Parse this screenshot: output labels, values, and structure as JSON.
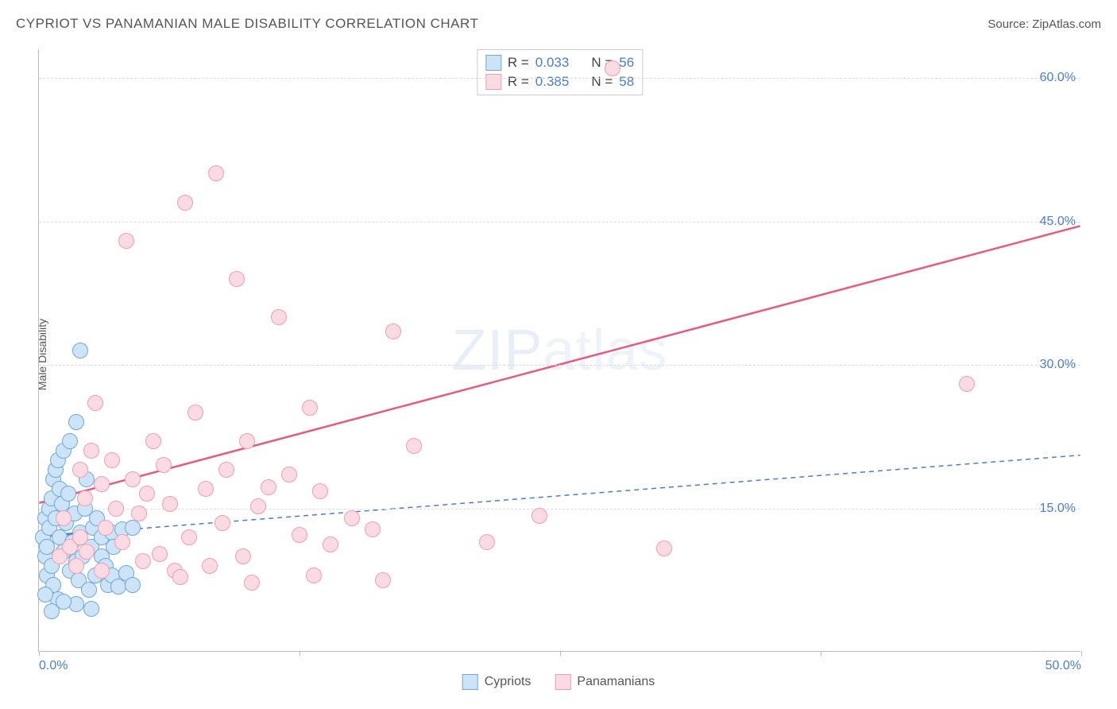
{
  "title": "CYPRIOT VS PANAMANIAN MALE DISABILITY CORRELATION CHART",
  "source_prefix": "Source: ",
  "source_name": "ZipAtlas.com",
  "y_label": "Male Disability",
  "watermark_bold": "ZIP",
  "watermark_light": "atlas",
  "chart": {
    "type": "scatter",
    "xlim": [
      0,
      50
    ],
    "ylim": [
      0,
      63
    ],
    "x_ticks": [
      0,
      12.5,
      25,
      37.5,
      50
    ],
    "x_tick_labels": {
      "0": "0.0%",
      "50": "50.0%"
    },
    "y_ticks": [
      15,
      30,
      45,
      60
    ],
    "y_tick_labels": {
      "15": "15.0%",
      "30": "30.0%",
      "45": "45.0%",
      "60": "60.0%"
    },
    "background_color": "#ffffff",
    "grid_color": "#dddddd",
    "axis_color": "#bbbbbb",
    "marker_radius": 10,
    "marker_stroke_width": 1.5,
    "series": [
      {
        "name": "Cypriots",
        "fill": "#cde3f7",
        "stroke": "#6fa8dc",
        "r_value": "0.033",
        "n_value": "56",
        "trend": {
          "x1": 0,
          "y1": 12.0,
          "x2": 50,
          "y2": 20.5,
          "color": "#4a7ec9",
          "dash": "6,5",
          "width": 1.5,
          "solid_until_x": 3.5
        },
        "points": [
          [
            0.2,
            12
          ],
          [
            0.3,
            10
          ],
          [
            0.3,
            14
          ],
          [
            0.4,
            8
          ],
          [
            0.4,
            11
          ],
          [
            0.5,
            13
          ],
          [
            0.5,
            15
          ],
          [
            0.6,
            9
          ],
          [
            0.6,
            16
          ],
          [
            0.7,
            18
          ],
          [
            0.7,
            7
          ],
          [
            0.8,
            14
          ],
          [
            0.8,
            19
          ],
          [
            0.9,
            20
          ],
          [
            0.9,
            5.5
          ],
          [
            1.0,
            17
          ],
          [
            1.0,
            12
          ],
          [
            1.1,
            15.5
          ],
          [
            1.2,
            21
          ],
          [
            1.2,
            10.5
          ],
          [
            1.3,
            13.5
          ],
          [
            1.4,
            16.5
          ],
          [
            1.5,
            22
          ],
          [
            1.5,
            8.5
          ],
          [
            1.6,
            11.5
          ],
          [
            1.7,
            14.5
          ],
          [
            1.8,
            9.5
          ],
          [
            1.8,
            24
          ],
          [
            1.9,
            7.5
          ],
          [
            2.0,
            31.5
          ],
          [
            2.0,
            12.5
          ],
          [
            2.1,
            10
          ],
          [
            2.2,
            15
          ],
          [
            2.3,
            18
          ],
          [
            2.4,
            6.5
          ],
          [
            2.5,
            11
          ],
          [
            2.6,
            13
          ],
          [
            2.7,
            8
          ],
          [
            2.8,
            14
          ],
          [
            3.0,
            10
          ],
          [
            3.0,
            12
          ],
          [
            3.2,
            9
          ],
          [
            3.3,
            7
          ],
          [
            3.5,
            12.5
          ],
          [
            3.5,
            8
          ],
          [
            3.6,
            11
          ],
          [
            3.8,
            6.8
          ],
          [
            4.0,
            12.8
          ],
          [
            4.2,
            8.2
          ],
          [
            4.5,
            7
          ],
          [
            4.5,
            13
          ],
          [
            2.5,
            4.5
          ],
          [
            1.8,
            5
          ],
          [
            0.6,
            4.2
          ],
          [
            0.3,
            6
          ],
          [
            1.2,
            5.2
          ]
        ]
      },
      {
        "name": "Panamanians",
        "fill": "#fbdbe3",
        "stroke": "#f29cb1",
        "r_value": "0.385",
        "n_value": "58",
        "trend": {
          "x1": 0,
          "y1": 15.5,
          "x2": 50,
          "y2": 44.5,
          "color": "#e85a7d",
          "dash": null,
          "width": 2.5
        },
        "points": [
          [
            1.0,
            10
          ],
          [
            1.2,
            14
          ],
          [
            1.5,
            11
          ],
          [
            1.8,
            9
          ],
          [
            2.0,
            19
          ],
          [
            2.2,
            16
          ],
          [
            2.3,
            10.5
          ],
          [
            2.5,
            21
          ],
          [
            2.7,
            26
          ],
          [
            3.0,
            17.5
          ],
          [
            3.2,
            13
          ],
          [
            3.5,
            20
          ],
          [
            3.7,
            15
          ],
          [
            4.0,
            11.5
          ],
          [
            4.2,
            43
          ],
          [
            4.5,
            18
          ],
          [
            4.8,
            14.5
          ],
          [
            5.0,
            9.5
          ],
          [
            5.2,
            16.5
          ],
          [
            5.5,
            22
          ],
          [
            5.8,
            10.2
          ],
          [
            6.0,
            19.5
          ],
          [
            6.3,
            15.5
          ],
          [
            6.5,
            8.5
          ],
          [
            6.8,
            7.8
          ],
          [
            7.0,
            47
          ],
          [
            7.2,
            12
          ],
          [
            7.5,
            25
          ],
          [
            8.0,
            17
          ],
          [
            8.2,
            9
          ],
          [
            8.5,
            50
          ],
          [
            8.8,
            13.5
          ],
          [
            9.0,
            19
          ],
          [
            9.5,
            39
          ],
          [
            9.8,
            10
          ],
          [
            10.0,
            22
          ],
          [
            10.2,
            7.2
          ],
          [
            10.5,
            15.2
          ],
          [
            11.0,
            17.2
          ],
          [
            11.5,
            35
          ],
          [
            12.0,
            18.5
          ],
          [
            12.5,
            12.2
          ],
          [
            13.0,
            25.5
          ],
          [
            13.2,
            8
          ],
          [
            13.5,
            16.8
          ],
          [
            14.0,
            11.2
          ],
          [
            15.0,
            14
          ],
          [
            16.0,
            12.8
          ],
          [
            16.5,
            7.5
          ],
          [
            17.0,
            33.5
          ],
          [
            18.0,
            21.5
          ],
          [
            21.5,
            11.5
          ],
          [
            24.0,
            14.2
          ],
          [
            27.5,
            61
          ],
          [
            30.0,
            10.8
          ],
          [
            44.5,
            28
          ],
          [
            2.0,
            12
          ],
          [
            3.0,
            8.5
          ]
        ]
      }
    ]
  },
  "stats_labels": {
    "r": "R =",
    "n": "N ="
  },
  "legend_items": [
    {
      "label": "Cypriots",
      "fill": "#cde3f7",
      "stroke": "#6fa8dc"
    },
    {
      "label": "Panamanians",
      "fill": "#fbdbe3",
      "stroke": "#f29cb1"
    }
  ]
}
